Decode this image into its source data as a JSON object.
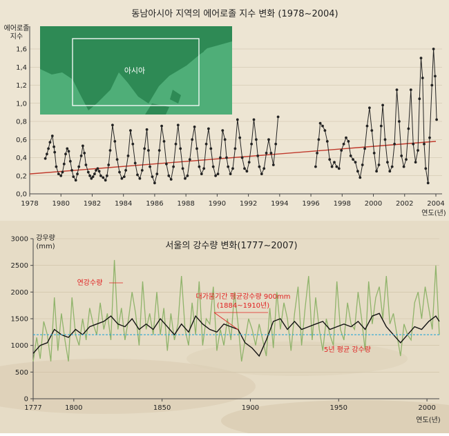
{
  "chart_data": [
    {
      "type": "line",
      "title": "동남아시아 지역의 에어로졸 지수 변화 (1978~2004)",
      "ylabel": "에어로졸\n지수",
      "xlabel": "연도(년)",
      "xlim": [
        1978,
        2004
      ],
      "ylim": [
        0,
        1.6
      ],
      "y_ticks": [
        "0,0",
        "0,2",
        "0,4",
        "0,6",
        "0,8",
        "1,0",
        "1,2",
        "1,4",
        "1,6"
      ],
      "x_ticks": [
        "1978",
        "1980",
        "1982",
        "1984",
        "1986",
        "1988",
        "1990",
        "1992",
        "1994",
        "1996",
        "1998",
        "2000",
        "2002",
        "2004"
      ],
      "inset_map": {
        "label": "아시아",
        "land_color": "#2e8a55",
        "sea_color": "#4fae78"
      },
      "series": [
        {
          "role": "monthly index",
          "color": "#222222",
          "segments": [
            {
              "x": [
                1979.0,
                1979.1,
                1979.2,
                1979.3,
                1979.45,
                1979.55,
                1979.6,
                1979.7,
                1979.85,
                1980.0,
                1980.1,
                1980.2,
                1980.3,
                1980.4,
                1980.5,
                1980.6,
                1980.7,
                1980.8,
                1980.95,
                1981.05,
                1981.15,
                1981.3,
                1981.4,
                1981.5,
                1981.6,
                1981.75,
                1981.85,
                1981.95,
                1982.05,
                1982.15,
                1982.25,
                1982.35,
                1982.45,
                1982.55,
                1982.7,
                1982.85,
                1982.95,
                1983.05,
                1983.15,
                1983.3,
                1983.45,
                1983.6,
                1983.75,
                1983.9,
                1984.05,
                1984.15,
                1984.3,
                1984.45,
                1984.6,
                1984.75,
                1984.9,
                1985.05,
                1985.2,
                1985.35,
                1985.5,
                1985.6,
                1985.7,
                1985.85,
                1986.0,
                1986.15,
                1986.3,
                1986.45,
                1986.6,
                1986.75,
                1986.9,
                1987.05,
                1987.2,
                1987.35,
                1987.5,
                1987.65,
                1987.8,
                1987.95,
                1988.1,
                1988.25,
                1988.4,
                1988.55,
                1988.7,
                1988.85,
                1989.0,
                1989.15,
                1989.3,
                1989.45,
                1989.6,
                1989.75,
                1989.9,
                1990.05,
                1990.2,
                1990.35,
                1990.5,
                1990.6,
                1990.7,
                1990.85,
                1991.0,
                1991.15,
                1991.3,
                1991.45,
                1991.6,
                1991.75,
                1991.9,
                1992.05,
                1992.2,
                1992.35,
                1992.5,
                1992.6,
                1992.7,
                1992.85,
                1993.0,
                1993.15,
                1993.3,
                1993.45,
                1993.6,
                1993.75,
                1993.9
              ],
              "y": [
                0.39,
                0.44,
                0.5,
                0.57,
                0.64,
                0.52,
                0.46,
                0.3,
                0.22,
                0.2,
                0.24,
                0.33,
                0.44,
                0.5,
                0.47,
                0.36,
                0.26,
                0.19,
                0.15,
                0.22,
                0.3,
                0.42,
                0.53,
                0.45,
                0.32,
                0.24,
                0.2,
                0.17,
                0.19,
                0.22,
                0.26,
                0.28,
                0.25,
                0.2,
                0.18,
                0.15,
                0.2,
                0.32,
                0.48,
                0.76,
                0.58,
                0.38,
                0.24,
                0.17,
                0.19,
                0.26,
                0.42,
                0.7,
                0.55,
                0.34,
                0.21,
                0.17,
                0.26,
                0.5,
                0.71,
                0.48,
                0.3,
                0.19,
                0.12,
                0.22,
                0.48,
                0.75,
                0.58,
                0.33,
                0.2,
                0.16,
                0.3,
                0.55,
                0.76,
                0.5,
                0.28,
                0.17,
                0.2,
                0.38,
                0.6,
                0.74,
                0.5,
                0.3,
                0.22,
                0.28,
                0.55,
                0.72,
                0.5,
                0.3,
                0.2,
                0.22,
                0.4,
                0.7,
                0.6,
                0.4,
                0.3,
                0.22,
                0.28,
                0.5,
                0.82,
                0.62,
                0.4,
                0.28,
                0.25,
                0.35,
                0.55,
                0.82,
                0.6,
                0.42,
                0.3,
                0.22,
                0.28,
                0.45,
                0.6,
                0.45,
                0.32,
                0.55,
                0.85
              ]
            },
            {
              "x": [
                1996.3,
                1996.4,
                1996.5,
                1996.6,
                1996.75,
                1996.9,
                1997.05,
                1997.2,
                1997.35,
                1997.5,
                1997.65,
                1997.8,
                1997.95,
                1998.1,
                1998.25,
                1998.4,
                1998.55,
                1998.7,
                1998.85,
                1999.0,
                1999.15,
                1999.3,
                1999.45,
                1999.6,
                1999.75,
                1999.9,
                2000.05,
                2000.2,
                2000.35,
                2000.5,
                2000.6,
                2000.75,
                2000.9,
                2001.05,
                2001.2,
                2001.35,
                2001.5,
                2001.65,
                2001.8,
                2001.95,
                2002.1,
                2002.25,
                2002.4,
                2002.55,
                2002.7,
                2002.85,
                2002.95,
                2003.05,
                2003.15,
                2003.25,
                2003.35,
                2003.5,
                2003.6,
                2003.75,
                2003.85,
                2003.95,
                2004.05
              ],
              "y": [
                0.3,
                0.45,
                0.6,
                0.78,
                0.75,
                0.7,
                0.58,
                0.38,
                0.3,
                0.35,
                0.3,
                0.28,
                0.48,
                0.55,
                0.62,
                0.58,
                0.42,
                0.38,
                0.35,
                0.25,
                0.18,
                0.32,
                0.5,
                0.75,
                0.95,
                0.7,
                0.45,
                0.25,
                0.32,
                0.75,
                0.98,
                0.6,
                0.35,
                0.25,
                0.3,
                0.55,
                1.15,
                0.8,
                0.42,
                0.3,
                0.38,
                0.72,
                1.15,
                0.55,
                0.35,
                0.48,
                1.05,
                1.5,
                1.28,
                0.55,
                0.28,
                0.12,
                0.62,
                1.2,
                1.6,
                1.3,
                0.82
              ]
            }
          ]
        },
        {
          "role": "trend line",
          "color": "#c0392b",
          "x": [
            1978,
            2004
          ],
          "y": [
            0.22,
            0.58
          ]
        }
      ]
    },
    {
      "type": "line",
      "title": "서울의 강수량 변화(1777~2007)",
      "ylabel": "강우량\n(mm)",
      "xlabel": "연도(년)",
      "xlim": [
        1777,
        2007
      ],
      "ylim": [
        0,
        3000
      ],
      "y_ticks": [
        "0",
        "500",
        "1000",
        "1500",
        "2000",
        "2500",
        "3000"
      ],
      "x_ticks": [
        "1777",
        "1800",
        "1850",
        "1900",
        "1950",
        "2000"
      ],
      "reference_line": {
        "value": 1200,
        "color": "#2aa6d6",
        "label": "5년 평균 강수량"
      },
      "annotations": {
        "annual_label": "연강수량",
        "drought_label_1": "대가뭄기간 평균강수량 900mm",
        "drought_label_2": "(1884~1910년)"
      },
      "series": [
        {
          "role": "annual rainfall",
          "color": "#8fb36a",
          "x": [
            1777,
            1779,
            1781,
            1783,
            1785,
            1787,
            1789,
            1791,
            1793,
            1795,
            1797,
            1799,
            1801,
            1803,
            1805,
            1807,
            1809,
            1811,
            1813,
            1815,
            1817,
            1819,
            1821,
            1823,
            1825,
            1827,
            1829,
            1831,
            1833,
            1835,
            1837,
            1839,
            1841,
            1843,
            1845,
            1847,
            1849,
            1851,
            1853,
            1855,
            1857,
            1859,
            1861,
            1863,
            1865,
            1867,
            1869,
            1871,
            1873,
            1875,
            1877,
            1879,
            1881,
            1883,
            1885,
            1887,
            1889,
            1891,
            1893,
            1895,
            1897,
            1899,
            1901,
            1903,
            1905,
            1907,
            1909,
            1911,
            1913,
            1915,
            1917,
            1919,
            1921,
            1923,
            1925,
            1927,
            1929,
            1931,
            1933,
            1935,
            1937,
            1939,
            1941,
            1943,
            1945,
            1947,
            1949,
            1951,
            1953,
            1955,
            1957,
            1959,
            1961,
            1963,
            1965,
            1967,
            1969,
            1971,
            1973,
            1975,
            1977,
            1979,
            1981,
            1983,
            1985,
            1987,
            1989,
            1991,
            1993,
            1995,
            1997,
            1999,
            2001,
            2003,
            2005,
            2007
          ],
          "y": [
            700,
            1150,
            750,
            1450,
            1200,
            700,
            1900,
            900,
            1600,
            1100,
            700,
            1900,
            1200,
            1000,
            1500,
            1100,
            1700,
            1400,
            1200,
            1800,
            1300,
            1600,
            1100,
            2600,
            1300,
            1700,
            1100,
            1500,
            2000,
            1600,
            1000,
            2200,
            1300,
            1600,
            1200,
            2000,
            1200,
            1700,
            900,
            1600,
            1100,
            1400,
            2300,
            1300,
            1000,
            1800,
            1200,
            2200,
            1000,
            1500,
            1400,
            2100,
            900,
            1300,
            1000,
            1500,
            1100,
            2000,
            1400,
            700,
            1100,
            1500,
            1300,
            1000,
            1400,
            1100,
            800,
            1700,
            950,
            2000,
            1300,
            1800,
            1500,
            900,
            1600,
            2100,
            1000,
            1700,
            2300,
            1100,
            1900,
            1300,
            900,
            1500,
            1200,
            1000,
            2200,
            1300,
            1100,
            1800,
            1400,
            1300,
            2000,
            1500,
            900,
            2200,
            1400,
            1900,
            2100,
            1500,
            2300,
            1400,
            1600,
            1200,
            800,
            1400,
            1200,
            1100,
            1800,
            2000,
            1500,
            2100,
            1700,
            1300,
            2500,
            1200
          ]
        },
        {
          "role": "5-year moving average",
          "color": "#111111",
          "x": [
            1777,
            1781,
            1785,
            1789,
            1793,
            1797,
            1801,
            1805,
            1809,
            1813,
            1817,
            1821,
            1825,
            1829,
            1833,
            1837,
            1841,
            1845,
            1849,
            1853,
            1857,
            1861,
            1865,
            1869,
            1873,
            1877,
            1881,
            1885,
            1889,
            1893,
            1897,
            1901,
            1905,
            1909,
            1913,
            1917,
            1921,
            1925,
            1929,
            1933,
            1937,
            1941,
            1945,
            1949,
            1953,
            1957,
            1961,
            1965,
            1969,
            1973,
            1977,
            1981,
            1985,
            1989,
            1993,
            1997,
            2001,
            2005,
            2007
          ],
          "y": [
            850,
            1000,
            1050,
            1300,
            1200,
            1150,
            1300,
            1200,
            1350,
            1400,
            1450,
            1550,
            1400,
            1350,
            1500,
            1300,
            1400,
            1300,
            1500,
            1350,
            1200,
            1400,
            1250,
            1550,
            1400,
            1300,
            1250,
            1400,
            1350,
            1300,
            1050,
            950,
            800,
            1100,
            1450,
            1500,
            1300,
            1450,
            1300,
            1350,
            1400,
            1450,
            1300,
            1350,
            1400,
            1350,
            1450,
            1300,
            1550,
            1600,
            1350,
            1200,
            1050,
            1200,
            1350,
            1300,
            1450,
            1550,
            1450
          ]
        }
      ]
    }
  ]
}
